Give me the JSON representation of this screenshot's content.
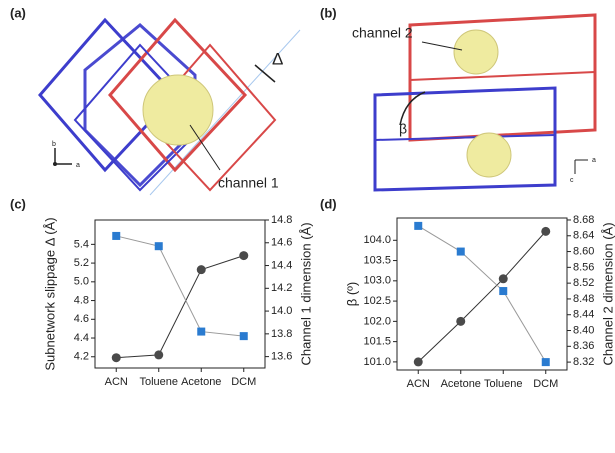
{
  "panels": [
    {
      "label": "(a)",
      "channel": "channel 1",
      "delta": "Δ",
      "axis_b": "b",
      "axis_a": "a"
    },
    {
      "label": "(b)",
      "channel": "channel 2",
      "beta": "β",
      "axis_a": "a",
      "axis_c": "c"
    }
  ],
  "chart_data": [
    {
      "type": "line",
      "panel_label": "(c)",
      "categories": [
        "ACN",
        "Toluene",
        "Acetone",
        "DCM"
      ],
      "ylabel": "Subnetwork slippage Δ (Å)",
      "y2label": "Channel 1 dimension (Å)",
      "y2color": "#2a7bd0",
      "ylim": [
        4.08,
        5.66
      ],
      "yticks": [
        4.2,
        4.4,
        4.6,
        4.8,
        {
          "value": 5,
          "label": "5.0"
        },
        5.2,
        5.4
      ],
      "y2lim": [
        13.5,
        14.8
      ],
      "y2ticks": [
        13.6,
        13.8,
        {
          "value": 14,
          "label": "14.0"
        },
        14.2,
        14.4,
        14.6,
        14.8
      ],
      "series": [
        {
          "color": "#4a4a4a",
          "line_color": "#333333",
          "marker": "circle",
          "values": [
            4.19,
            4.22,
            5.13,
            5.28
          ]
        },
        {
          "color": "#2a7bd0",
          "line_color": "#999999",
          "marker": "square",
          "axis": "y2",
          "values": [
            14.66,
            14.57,
            13.82,
            13.78
          ]
        }
      ]
    },
    {
      "type": "line",
      "panel_label": "(d)",
      "categories": [
        "ACN",
        "Acetone",
        "Toluene",
        "DCM"
      ],
      "ylabel": "β (º)",
      "y2label": "Channel 2 dimension (Å)",
      "y2color": "#2a7bd0",
      "ylim": [
        100.8,
        104.55
      ],
      "yticks": [
        {
          "value": 101,
          "label": "101.0"
        },
        101.5,
        {
          "value": 102,
          "label": "102.0"
        },
        102.5,
        {
          "value": 103,
          "label": "103.0"
        },
        103.5,
        {
          "value": 104,
          "label": "104.0"
        }
      ],
      "y2lim": [
        8.3,
        8.685
      ],
      "y2ticks": [
        8.32,
        8.36,
        {
          "value": 8.4,
          "label": "8.40"
        },
        8.44,
        8.48,
        8.52,
        8.56,
        {
          "value": 8.6,
          "label": "8.60"
        },
        8.64,
        8.68
      ],
      "series": [
        {
          "color": "#4a4a4a",
          "line_color": "#333333",
          "marker": "circle",
          "values": [
            101.0,
            102.0,
            103.05,
            104.22
          ]
        },
        {
          "color": "#2a7bd0",
          "line_color": "#999999",
          "marker": "square",
          "axis": "y2",
          "values": [
            8.665,
            8.6,
            8.5,
            8.32
          ]
        }
      ]
    }
  ]
}
